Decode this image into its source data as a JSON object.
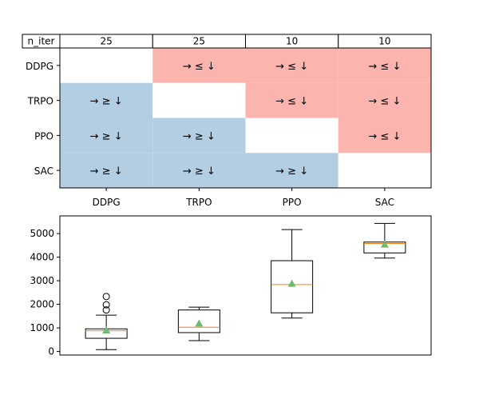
{
  "chart_data": [
    {
      "type": "table",
      "header_label": "n_iter",
      "header_values": [
        "25",
        "25",
        "10",
        "10"
      ],
      "rows": [
        "DDPG",
        "TRPO",
        "PPO",
        "SAC"
      ],
      "columns": [
        "DDPG",
        "TRPO",
        "PPO",
        "SAC"
      ],
      "colors": {
        "greater": "#b3cde3",
        "less": "#fbb4ae",
        "none": "#ffffff"
      },
      "cells": [
        [
          "",
          "→ ≤ ↓",
          "→ ≤ ↓",
          "→ ≤ ↓"
        ],
        [
          "→ ≥ ↓",
          "",
          "→ ≤ ↓",
          "→ ≤ ↓"
        ],
        [
          "→ ≥ ↓",
          "→ ≥ ↓",
          "",
          "→ ≤ ↓"
        ],
        [
          "→ ≥ ↓",
          "→ ≥ ↓",
          "→ ≥ ↓",
          ""
        ]
      ]
    },
    {
      "type": "box",
      "categories": [
        "DDPG",
        "TRPO",
        "PPO",
        "SAC"
      ],
      "ylim": [
        -150,
        5750
      ],
      "yticks": [
        0,
        1000,
        2000,
        3000,
        4000,
        5000
      ],
      "colors": {
        "median": "#ff7f0e",
        "mean": "#6fba6f",
        "box": "#000000"
      },
      "boxes": [
        {
          "whislo": 80,
          "q1": 560,
          "med": 880,
          "q3": 960,
          "whishi": 1540,
          "mean": 900,
          "fliers": [
            1760,
            1980,
            2330
          ]
        },
        {
          "whislo": 460,
          "q1": 800,
          "med": 1030,
          "q3": 1760,
          "whishi": 1880,
          "mean": 1190,
          "fliers": []
        },
        {
          "whislo": 1420,
          "q1": 1640,
          "med": 2840,
          "q3": 3850,
          "whishi": 5170,
          "mean": 2880,
          "fliers": []
        },
        {
          "whislo": 3960,
          "q1": 4180,
          "med": 4580,
          "q3": 4640,
          "whishi": 5430,
          "mean": 4540,
          "fliers": []
        }
      ]
    }
  ]
}
